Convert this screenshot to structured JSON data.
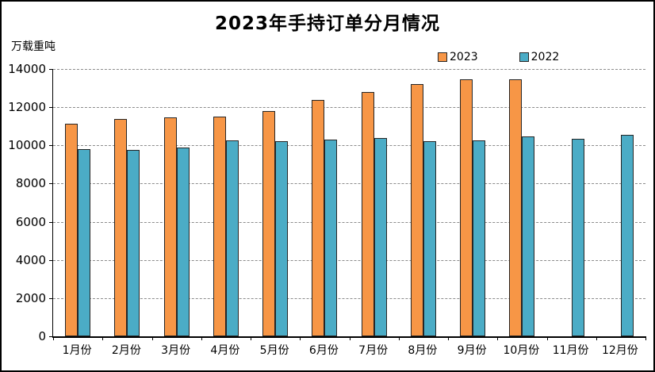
{
  "chart_data": {
    "type": "bar",
    "title": "2023年手持订单分月情况",
    "xlabel": "",
    "ylabel": "万载重吨",
    "ylim": [
      0,
      14000
    ],
    "y_ticks": [
      0,
      2000,
      4000,
      6000,
      8000,
      10000,
      12000,
      14000
    ],
    "grid": "horizontal-dashed",
    "legend_position": "top-right",
    "categories": [
      "1月份",
      "2月份",
      "3月份",
      "4月份",
      "5月份",
      "6月份",
      "7月份",
      "8月份",
      "9月份",
      "10月份",
      "11月份",
      "12月份"
    ],
    "series": [
      {
        "name": "2023",
        "color": "#F79646",
        "values": [
          11150,
          11400,
          11450,
          11500,
          11800,
          12400,
          12800,
          13200,
          13450,
          13450,
          null,
          null
        ]
      },
      {
        "name": "2022",
        "color": "#4BACC6",
        "values": [
          9800,
          9780,
          9900,
          10250,
          10200,
          10300,
          10400,
          10200,
          10250,
          10450,
          10350,
          10550
        ]
      }
    ]
  }
}
